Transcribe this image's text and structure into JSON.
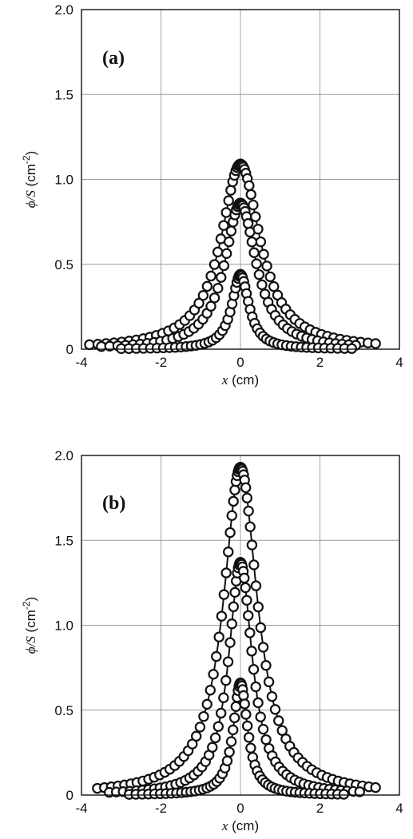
{
  "chart_data": [
    {
      "type": "scatter",
      "panel_label": "(a)",
      "xlabel_var": "x",
      "xlabel_unit": " (cm)",
      "ylabel_main": "ϕ/S",
      "ylabel_unit": " (cm",
      "ylabel_exp": "-2",
      "ylabel_close": ")",
      "xlim": [
        -4,
        4
      ],
      "ylim": [
        0,
        2
      ],
      "xticks": [
        -4,
        -2,
        0,
        2,
        4
      ],
      "xtick_labels": [
        "-4",
        "-2",
        "0",
        "2",
        "4"
      ],
      "yticks": [
        0,
        0.5,
        1.0,
        1.5,
        2.0
      ],
      "ytick_labels": [
        "0",
        "0.5",
        "1.0",
        "1.5",
        "2.0"
      ],
      "grid": true,
      "series": [
        {
          "peak": 1.09,
          "width": 0.6,
          "xmin": -3.8,
          "xmax": 3.4,
          "points": 75
        },
        {
          "peak": 0.86,
          "width": 0.48,
          "xmin": -3.5,
          "xmax": 2.9,
          "points": 70
        },
        {
          "peak": 0.44,
          "width": 0.26,
          "xmin": -3.0,
          "xmax": 2.8,
          "points": 65
        }
      ]
    },
    {
      "type": "scatter",
      "panel_label": "(b)",
      "xlabel_var": "x",
      "xlabel_unit": " (cm)",
      "ylabel_main": "ϕ/S",
      "ylabel_unit": " (cm",
      "ylabel_exp": "-2",
      "ylabel_close": ")",
      "xlim": [
        -4,
        4
      ],
      "ylim": [
        0,
        2
      ],
      "xticks": [
        -4,
        -2,
        0,
        2,
        4
      ],
      "xtick_labels": [
        "-4",
        "-2",
        "0",
        "2",
        "4"
      ],
      "yticks": [
        0,
        0.5,
        1.0,
        1.5,
        2.0
      ],
      "ytick_labels": [
        "0",
        "0.5",
        "1.0",
        "1.5",
        "2.0"
      ],
      "grid": true,
      "series": [
        {
          "peak": 1.93,
          "width": 0.52,
          "xmin": -3.6,
          "xmax": 3.4,
          "points": 85
        },
        {
          "peak": 1.37,
          "width": 0.36,
          "xmin": -3.3,
          "xmax": 3.0,
          "points": 78
        },
        {
          "peak": 0.66,
          "width": 0.22,
          "xmin": -2.8,
          "xmax": 2.6,
          "points": 70
        }
      ]
    }
  ]
}
